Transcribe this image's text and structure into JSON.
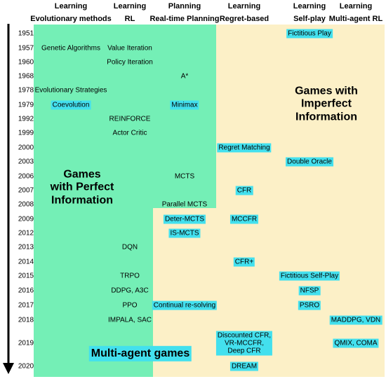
{
  "columns": [
    {
      "top": "Learning",
      "bottom": "Evolutionary methods"
    },
    {
      "top": "Learning",
      "bottom": "RL"
    },
    {
      "top": "Planning",
      "bottom": "Real-time Planning"
    },
    {
      "top": "Learning",
      "bottom": "Regret-based"
    },
    {
      "top": "Learning",
      "bottom": "Self-play"
    },
    {
      "top": "Learning",
      "bottom": "Multi-agent RL"
    }
  ],
  "years": [
    "1951",
    "1957",
    "1960",
    "1968",
    "1978",
    "1979",
    "1992",
    "1999",
    "2000",
    "2003",
    "2006",
    "2007",
    "2008",
    "2009",
    "2012",
    "2013",
    "2014",
    "2015",
    "2016",
    "2017",
    "2018",
    "2019",
    "2020"
  ],
  "items": [
    {
      "text": "Fictitious Play",
      "col": 4,
      "row": 0,
      "hl": true
    },
    {
      "text": "Genetic Algorithms",
      "col": 0,
      "row": 1,
      "hl": false
    },
    {
      "text": "Value Iteration",
      "col": 1,
      "row": 1,
      "hl": false
    },
    {
      "text": "Policy Iteration",
      "col": 1,
      "row": 2,
      "hl": false
    },
    {
      "text": "A*",
      "col": 2,
      "row": 3,
      "hl": false
    },
    {
      "text": "Evolutionary Strategies",
      "col": 0,
      "row": 4,
      "hl": false
    },
    {
      "text": "Coevolution",
      "col": 0,
      "row": 5,
      "hl": true
    },
    {
      "text": "Minimax",
      "col": 2,
      "row": 5,
      "hl": true
    },
    {
      "text": "REINFORCE",
      "col": 1,
      "row": 6,
      "hl": false
    },
    {
      "text": "Actor Critic",
      "col": 1,
      "row": 7,
      "hl": false
    },
    {
      "text": "Regret Matching",
      "col": 3,
      "row": 8,
      "hl": true
    },
    {
      "text": "Double Oracle",
      "col": 4,
      "row": 9,
      "hl": true
    },
    {
      "text": "MCTS",
      "col": 2,
      "row": 10,
      "hl": false
    },
    {
      "text": "CFR",
      "col": 3,
      "row": 11,
      "hl": true
    },
    {
      "text": "Parallel MCTS",
      "col": 2,
      "row": 12,
      "hl": false
    },
    {
      "text": "Deter-MCTS",
      "col": 2,
      "row": 13,
      "hl": true
    },
    {
      "text": "MCCFR",
      "col": 3,
      "row": 13,
      "hl": true
    },
    {
      "text": "IS-MCTS",
      "col": 2,
      "row": 14,
      "hl": true
    },
    {
      "text": "DQN",
      "col": 1,
      "row": 15,
      "hl": false
    },
    {
      "text": "CFR+",
      "col": 3,
      "row": 16,
      "hl": true
    },
    {
      "text": "TRPO",
      "col": 1,
      "row": 17,
      "hl": false
    },
    {
      "text": "Fictitious Self-Play",
      "col": 4,
      "row": 17,
      "hl": true
    },
    {
      "text": "DDPG, A3C",
      "col": 1,
      "row": 18,
      "hl": false
    },
    {
      "text": "NFSP",
      "col": 4,
      "row": 18,
      "hl": true
    },
    {
      "text": "PPO",
      "col": 1,
      "row": 19,
      "hl": false
    },
    {
      "text": "Continual re-solving",
      "col": 2,
      "row": 19,
      "hl": true
    },
    {
      "text": "PSRO",
      "col": 4,
      "row": 19,
      "hl": true
    },
    {
      "text": "IMPALA, SAC",
      "col": 1,
      "row": 20,
      "hl": false
    },
    {
      "text": "MADDPG, VDN",
      "col": 5,
      "row": 20,
      "hl": true
    },
    {
      "text": "Discounted CFR,\nVR-MCCFR,\nDeep CFR",
      "col": 3,
      "row": 21,
      "hl": true
    },
    {
      "text": "QMIX, COMA",
      "col": 5,
      "row": 21,
      "hl": true
    },
    {
      "text": "DREAM",
      "col": 3,
      "row": 22,
      "hl": true
    }
  ],
  "regions": {
    "perfect": "Games\nwith Perfect\nInformation",
    "imperfect": "Games with\nImperfect\nInformation",
    "multiagent": "Multi-agent games"
  },
  "colors": {
    "perfect_bg": "#74efb6",
    "imperfect_bg": "#fcf0c7",
    "highlight": "#43e0ee",
    "arrow": "#000000"
  }
}
